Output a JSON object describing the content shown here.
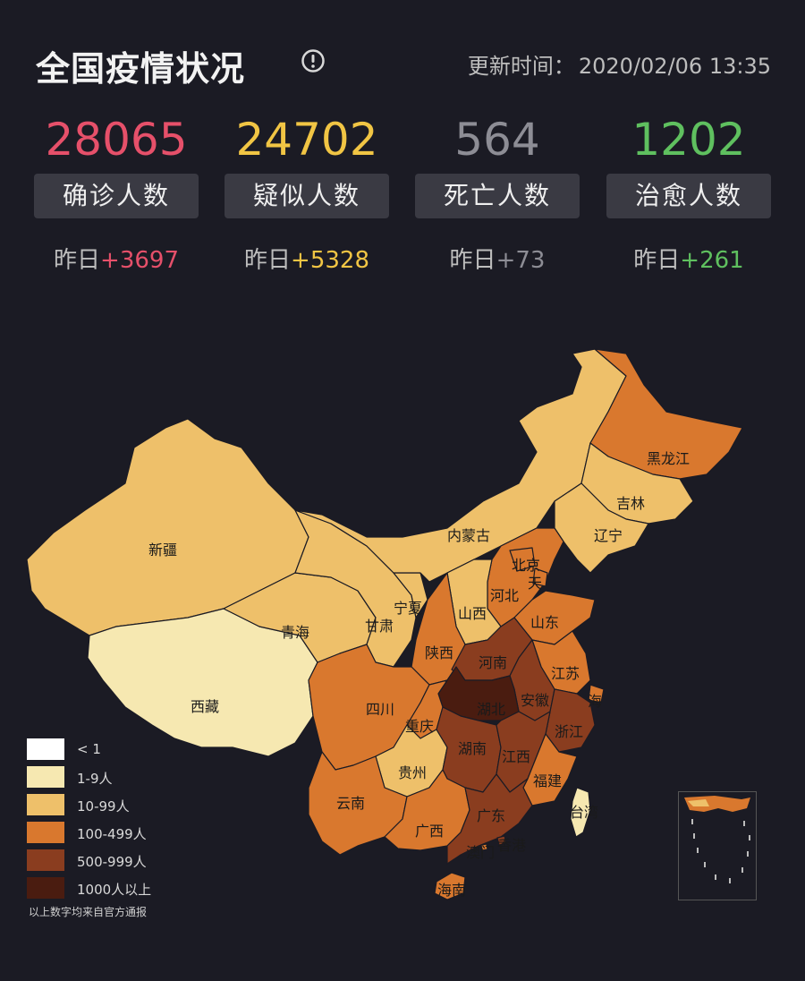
{
  "header": {
    "title": "全国疫情状况",
    "update_label": "更新时间：",
    "update_time": "2020/02/06 13:35",
    "info_icon": "info-circle-icon"
  },
  "stats": [
    {
      "value": "28065",
      "label": "确诊人数",
      "delta_prefix": "昨日",
      "delta": "+3697",
      "color": "#e6506a"
    },
    {
      "value": "24702",
      "label": "疑似人数",
      "delta_prefix": "昨日",
      "delta": "+5328",
      "color": "#f1c544"
    },
    {
      "value": "564",
      "label": "死亡人数",
      "delta_prefix": "昨日",
      "delta": "+73",
      "color": "#8d8d95"
    },
    {
      "value": "1202",
      "label": "治愈人数",
      "delta_prefix": "昨日",
      "delta": "+261",
      "color": "#5fc05f"
    }
  ],
  "legend": [
    {
      "label": "< 1",
      "color": "#ffffff"
    },
    {
      "label": "1-9人",
      "color": "#f6e8b1"
    },
    {
      "label": "10-99人",
      "color": "#eec06a"
    },
    {
      "label": "100-499人",
      "color": "#d9782e"
    },
    {
      "label": "500-999人",
      "color": "#8a3d1f"
    },
    {
      "label": "1000人以上",
      "color": "#4a1c10"
    }
  ],
  "source_note": "以上数字均来自官方通报",
  "provinces": {
    "xinjiang": "新疆",
    "xizang": "西藏",
    "qinghai": "青海",
    "gansu": "甘肃",
    "ningxia": "宁夏",
    "neimenggu": "内蒙古",
    "heilongjiang": "黑龙江",
    "jilin": "吉林",
    "liaoning": "辽宁",
    "beijing": "北京",
    "tianjin": "天",
    "hebei": "河北",
    "shanxi": "山西",
    "shandong": "山东",
    "shaanxi": "陕西",
    "henan": "河南",
    "jiangsu": "江苏",
    "shanghai": "海",
    "anhui": "安徽",
    "hubei": "湖北",
    "sichuan": "四川",
    "chongqing": "重庆",
    "zhejiang": "浙江",
    "hunan": "湖南",
    "jiangxi": "江西",
    "guizhou": "贵州",
    "fujian": "福建",
    "yunnan": "云南",
    "guangxi": "广西",
    "guangdong": "广东",
    "taiwan": "台湾",
    "xianggang": "香港",
    "aomen": "澳门",
    "hainan": "海南"
  }
}
